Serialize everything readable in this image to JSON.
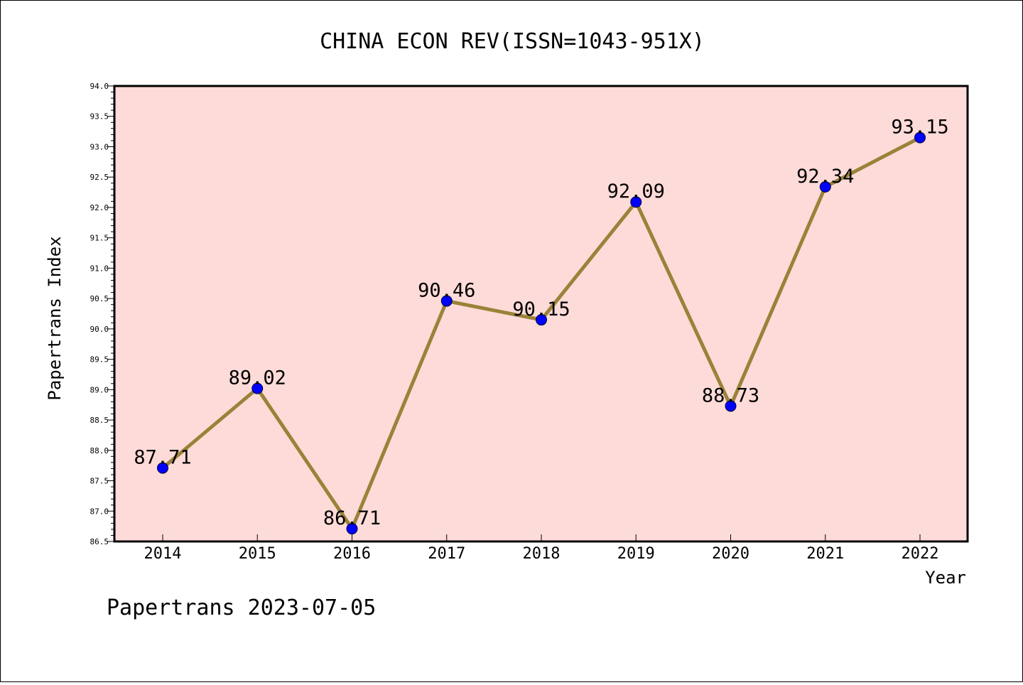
{
  "chart_data": {
    "type": "line",
    "title": "CHINA ECON REV(ISSN=1043-951X)",
    "xlabel": "Year",
    "ylabel": "Papertrans Index",
    "categories": [
      "2014",
      "2015",
      "2016",
      "2017",
      "2018",
      "2019",
      "2020",
      "2021",
      "2022"
    ],
    "values": [
      87.71,
      89.02,
      86.71,
      90.46,
      90.15,
      92.09,
      88.73,
      92.34,
      93.15
    ],
    "data_labels": [
      "87.71",
      "89.02",
      "86.71",
      "90.46",
      "90.15",
      "92.09",
      "88.73",
      "92.34",
      "93.15"
    ],
    "ylim": [
      86.5,
      94.0
    ],
    "yticks": [
      "86.5",
      "87.0",
      "87.5",
      "88.0",
      "88.5",
      "89.0",
      "89.5",
      "90.0",
      "90.5",
      "91.0",
      "91.5",
      "92.0",
      "92.5",
      "93.0",
      "93.5",
      "94.0"
    ],
    "grid": false,
    "legend": "none",
    "colors": {
      "plot_background": "#fddbd8",
      "line": "#9a8238",
      "marker_fill": "#0000ff",
      "marker_edge": "#000033"
    }
  },
  "footer": {
    "text": "Papertrans 2023-07-05"
  }
}
